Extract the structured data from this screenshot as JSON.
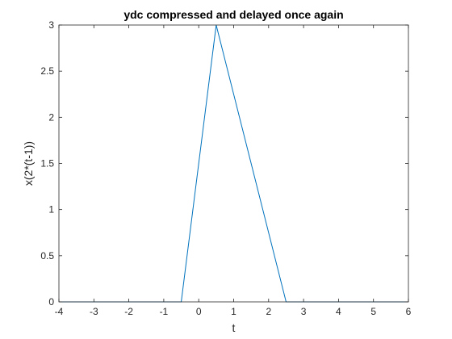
{
  "chart_data": {
    "type": "line",
    "title": "ydc compressed and delayed once again",
    "xlabel": "t",
    "ylabel": "x(2*(t-1))",
    "xlim": [
      -4,
      6
    ],
    "ylim": [
      0,
      3
    ],
    "xticks": [
      -4,
      -3,
      -2,
      -1,
      0,
      1,
      2,
      3,
      4,
      5,
      6
    ],
    "yticks": [
      0,
      0.5,
      1,
      1.5,
      2,
      2.5,
      3
    ],
    "grid": false,
    "series": [
      {
        "x": [
          -4,
          -0.5,
          0.5,
          2.5,
          6
        ],
        "y": [
          0,
          0,
          3,
          0,
          0
        ],
        "color": "#0072BD"
      }
    ]
  }
}
